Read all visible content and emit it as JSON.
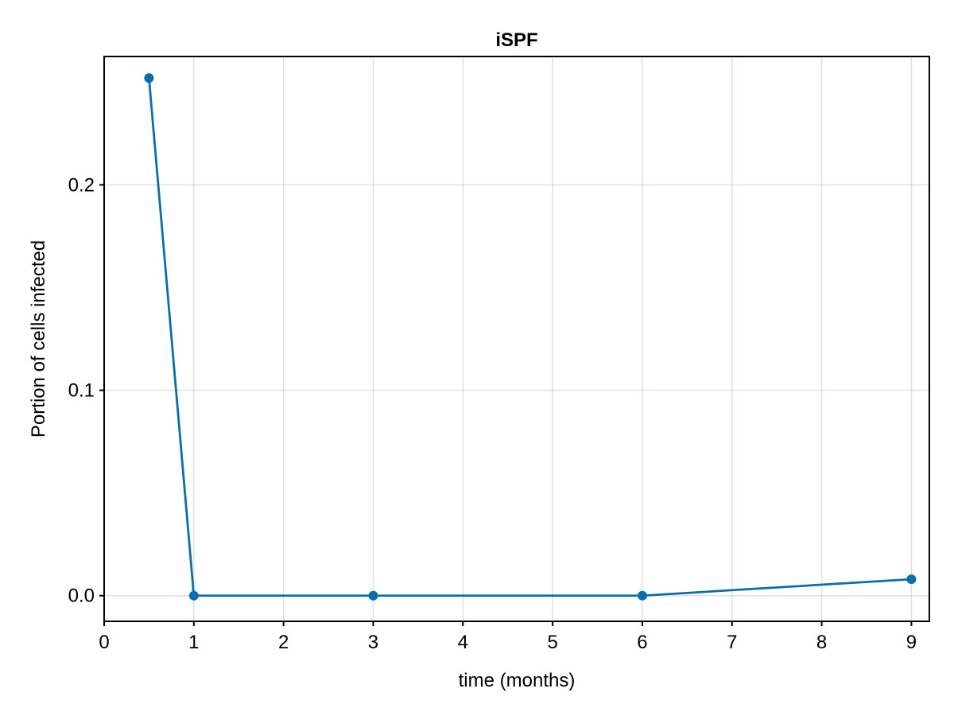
{
  "chart_data": {
    "type": "line",
    "title": "iSPF",
    "xlabel": "time (months)",
    "ylabel": "Portion of cells infected",
    "xlim": [
      0,
      9.2
    ],
    "ylim": [
      -0.0125,
      0.2625
    ],
    "xticks": [
      0,
      1,
      2,
      3,
      4,
      5,
      6,
      7,
      8,
      9
    ],
    "xtick_labels": [
      "0",
      "1",
      "2",
      "3",
      "4",
      "5",
      "6",
      "7",
      "8",
      "9"
    ],
    "yticks": [
      0.0,
      0.1,
      0.2
    ],
    "ytick_labels": [
      "0.0",
      "0.1",
      "0.2"
    ],
    "grid": true,
    "series": [
      {
        "x": [
          0.5,
          1,
          3,
          6,
          9
        ],
        "y": [
          0.252,
          0.0,
          0.0,
          0.0,
          0.008
        ],
        "color": "#0a6fa9",
        "markers": true
      }
    ]
  }
}
